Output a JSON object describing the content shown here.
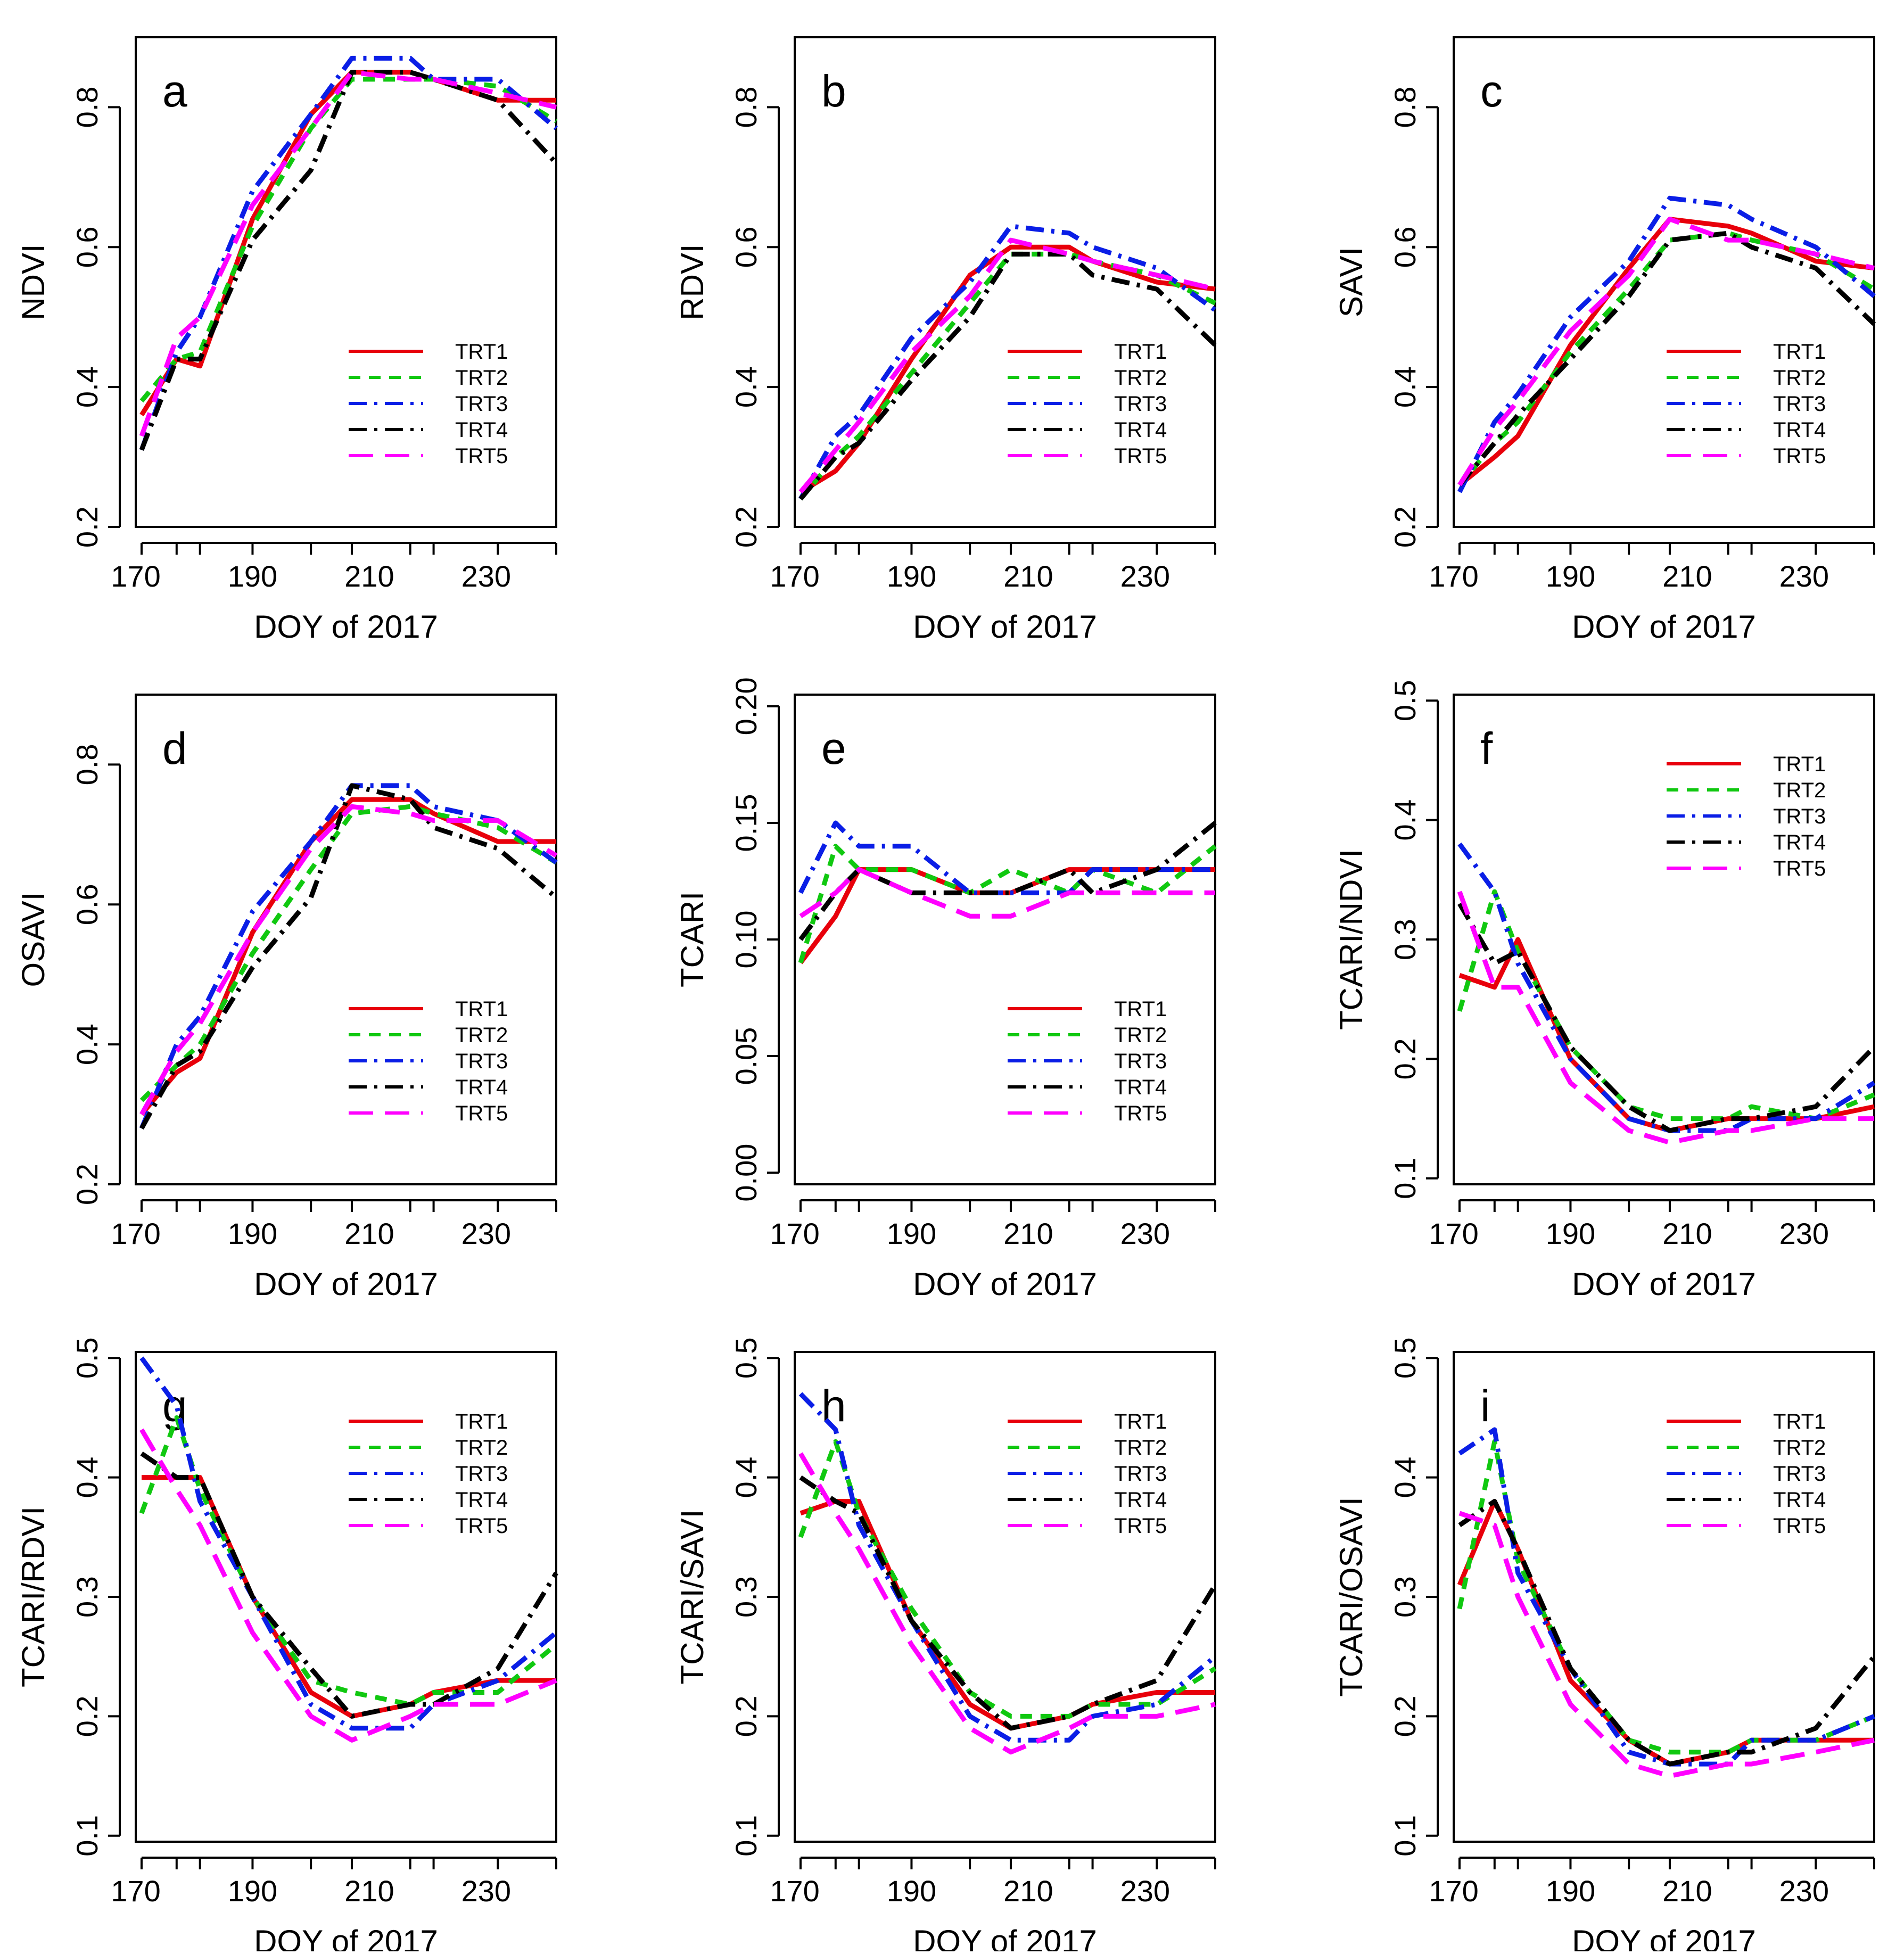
{
  "figure": {
    "xlabel": "DOY of 2017",
    "x_ticks": [
      170,
      190,
      210,
      230
    ],
    "x_days": [
      171,
      177,
      181,
      190,
      200,
      207,
      217,
      221,
      232,
      242
    ],
    "series_styles": [
      {
        "name": "TRT1",
        "color": "#e8000b",
        "dash": "solid"
      },
      {
        "name": "TRT2",
        "color": "#10c810",
        "dash": "dashed"
      },
      {
        "name": "TRT3",
        "color": "#0a1ee6",
        "dash": "dotdash"
      },
      {
        "name": "TRT4",
        "color": "#000000",
        "dash": "dotdash"
      },
      {
        "name": "TRT5",
        "color": "#ff00ff",
        "dash": "longdash"
      }
    ]
  },
  "chart_data": [
    {
      "type": "line",
      "panel": "a",
      "ylabel": "NDVI",
      "xlabel": "DOY of 2017",
      "xlim": [
        170,
        242
      ],
      "ylim": [
        0.2,
        0.9
      ],
      "y_ticks": [
        "0.2",
        "0.4",
        "0.6",
        "0.8"
      ],
      "y_tick_values": [
        0.2,
        0.4,
        0.6,
        0.8
      ],
      "legend_position": "bottom-right",
      "x": [
        171,
        177,
        181,
        190,
        200,
        207,
        217,
        221,
        232,
        242
      ],
      "series": [
        {
          "name": "TRT1",
          "values": [
            0.36,
            0.44,
            0.43,
            0.64,
            0.79,
            0.85,
            0.85,
            0.84,
            0.81,
            0.81
          ]
        },
        {
          "name": "TRT2",
          "values": [
            0.38,
            0.44,
            0.45,
            0.63,
            0.77,
            0.84,
            0.84,
            0.84,
            0.83,
            0.78
          ]
        },
        {
          "name": "TRT3",
          "values": [
            0.31,
            0.45,
            0.5,
            0.68,
            0.79,
            0.87,
            0.87,
            0.84,
            0.84,
            0.77
          ]
        },
        {
          "name": "TRT4",
          "values": [
            0.31,
            0.44,
            0.44,
            0.61,
            0.71,
            0.85,
            0.85,
            0.84,
            0.81,
            0.72
          ]
        },
        {
          "name": "TRT5",
          "values": [
            0.33,
            0.47,
            0.5,
            0.66,
            0.77,
            0.85,
            0.84,
            0.84,
            0.82,
            0.8
          ]
        }
      ]
    },
    {
      "type": "line",
      "panel": "b",
      "ylabel": "RDVI",
      "xlabel": "DOY of 2017",
      "xlim": [
        170,
        242
      ],
      "ylim": [
        0.2,
        0.9
      ],
      "y_ticks": [
        "0.2",
        "0.4",
        "0.6",
        "0.8"
      ],
      "y_tick_values": [
        0.2,
        0.4,
        0.6,
        0.8
      ],
      "legend_position": "bottom-right",
      "x": [
        171,
        177,
        181,
        190,
        200,
        207,
        217,
        221,
        232,
        242
      ],
      "series": [
        {
          "name": "TRT1",
          "values": [
            0.25,
            0.28,
            0.32,
            0.44,
            0.56,
            0.6,
            0.6,
            0.58,
            0.55,
            0.54
          ]
        },
        {
          "name": "TRT2",
          "values": [
            0.24,
            0.3,
            0.33,
            0.42,
            0.52,
            0.59,
            0.59,
            0.58,
            0.56,
            0.52
          ]
        },
        {
          "name": "TRT3",
          "values": [
            0.24,
            0.33,
            0.36,
            0.47,
            0.55,
            0.63,
            0.62,
            0.6,
            0.57,
            0.51
          ]
        },
        {
          "name": "TRT4",
          "values": [
            0.24,
            0.3,
            0.32,
            0.41,
            0.5,
            0.59,
            0.59,
            0.56,
            0.54,
            0.46
          ]
        },
        {
          "name": "TRT5",
          "values": [
            0.25,
            0.31,
            0.35,
            0.45,
            0.53,
            0.61,
            0.59,
            0.58,
            0.56,
            0.54
          ]
        }
      ]
    },
    {
      "type": "line",
      "panel": "c",
      "ylabel": "SAVI",
      "xlabel": "DOY of 2017",
      "xlim": [
        170,
        242
      ],
      "ylim": [
        0.2,
        0.9
      ],
      "y_ticks": [
        "0.2",
        "0.4",
        "0.6",
        "0.8"
      ],
      "y_tick_values": [
        0.2,
        0.4,
        0.6,
        0.8
      ],
      "legend_position": "bottom-right",
      "x": [
        171,
        177,
        181,
        190,
        200,
        207,
        217,
        221,
        232,
        242
      ],
      "series": [
        {
          "name": "TRT1",
          "values": [
            0.26,
            0.3,
            0.33,
            0.46,
            0.57,
            0.64,
            0.63,
            0.62,
            0.58,
            0.57
          ]
        },
        {
          "name": "TRT2",
          "values": [
            0.26,
            0.32,
            0.35,
            0.45,
            0.54,
            0.61,
            0.62,
            0.61,
            0.59,
            0.54
          ]
        },
        {
          "name": "TRT3",
          "values": [
            0.25,
            0.35,
            0.39,
            0.5,
            0.58,
            0.67,
            0.66,
            0.64,
            0.6,
            0.53
          ]
        },
        {
          "name": "TRT4",
          "values": [
            0.26,
            0.32,
            0.36,
            0.44,
            0.53,
            0.61,
            0.62,
            0.6,
            0.57,
            0.49
          ]
        },
        {
          "name": "TRT5",
          "values": [
            0.26,
            0.34,
            0.38,
            0.48,
            0.56,
            0.64,
            0.61,
            0.61,
            0.59,
            0.57
          ]
        }
      ]
    },
    {
      "type": "line",
      "panel": "d",
      "ylabel": "OSAVI",
      "xlabel": "DOY of 2017",
      "xlim": [
        170,
        242
      ],
      "ylim": [
        0.2,
        0.9
      ],
      "y_ticks": [
        "0.2",
        "0.4",
        "0.6",
        "0.8"
      ],
      "y_tick_values": [
        0.2,
        0.4,
        0.6,
        0.8
      ],
      "legend_position": "bottom-right",
      "x": [
        171,
        177,
        181,
        190,
        200,
        207,
        217,
        221,
        232,
        242
      ],
      "series": [
        {
          "name": "TRT1",
          "values": [
            0.3,
            0.36,
            0.38,
            0.56,
            0.69,
            0.75,
            0.75,
            0.73,
            0.69,
            0.69
          ]
        },
        {
          "name": "TRT2",
          "values": [
            0.32,
            0.37,
            0.4,
            0.53,
            0.65,
            0.73,
            0.74,
            0.73,
            0.71,
            0.66
          ]
        },
        {
          "name": "TRT3",
          "values": [
            0.28,
            0.4,
            0.44,
            0.59,
            0.69,
            0.77,
            0.77,
            0.74,
            0.72,
            0.66
          ]
        },
        {
          "name": "TRT4",
          "values": [
            0.28,
            0.37,
            0.39,
            0.51,
            0.61,
            0.77,
            0.75,
            0.71,
            0.68,
            0.61
          ]
        },
        {
          "name": "TRT5",
          "values": [
            0.3,
            0.39,
            0.43,
            0.56,
            0.68,
            0.74,
            0.73,
            0.72,
            0.72,
            0.67
          ]
        }
      ]
    },
    {
      "type": "line",
      "panel": "e",
      "ylabel": "TCARI",
      "xlabel": "DOY of 2017",
      "xlim": [
        170,
        242
      ],
      "ylim": [
        -0.005,
        0.205
      ],
      "y_ticks": [
        "0.00",
        "0.05",
        "0.10",
        "0.15",
        "0.20"
      ],
      "y_tick_values": [
        0.0,
        0.05,
        0.1,
        0.15,
        0.2
      ],
      "legend_position": "bottom-right",
      "x": [
        171,
        177,
        181,
        190,
        200,
        207,
        217,
        221,
        232,
        242
      ],
      "series": [
        {
          "name": "TRT1",
          "values": [
            0.09,
            0.11,
            0.13,
            0.13,
            0.12,
            0.12,
            0.13,
            0.13,
            0.13,
            0.13
          ]
        },
        {
          "name": "TRT2",
          "values": [
            0.09,
            0.14,
            0.13,
            0.13,
            0.12,
            0.13,
            0.12,
            0.13,
            0.12,
            0.14
          ]
        },
        {
          "name": "TRT3",
          "values": [
            0.12,
            0.15,
            0.14,
            0.14,
            0.12,
            0.12,
            0.12,
            0.13,
            0.13,
            0.13
          ]
        },
        {
          "name": "TRT4",
          "values": [
            0.1,
            0.12,
            0.13,
            0.12,
            0.12,
            0.12,
            0.13,
            0.12,
            0.13,
            0.15
          ]
        },
        {
          "name": "TRT5",
          "values": [
            0.11,
            0.12,
            0.13,
            0.12,
            0.11,
            0.11,
            0.12,
            0.12,
            0.12,
            0.12
          ]
        }
      ]
    },
    {
      "type": "line",
      "panel": "f",
      "ylabel": "TCARI/NDVI",
      "xlabel": "DOY of 2017",
      "xlim": [
        170,
        242
      ],
      "ylim": [
        0.095,
        0.505
      ],
      "y_ticks": [
        "0.1",
        "0.2",
        "0.3",
        "0.4",
        "0.5"
      ],
      "y_tick_values": [
        0.1,
        0.2,
        0.3,
        0.4,
        0.5
      ],
      "legend_position": "top-right",
      "x": [
        171,
        177,
        181,
        190,
        200,
        207,
        217,
        221,
        232,
        242
      ],
      "series": [
        {
          "name": "TRT1",
          "values": [
            0.27,
            0.26,
            0.3,
            0.2,
            0.15,
            0.14,
            0.15,
            0.15,
            0.15,
            0.16
          ]
        },
        {
          "name": "TRT2",
          "values": [
            0.24,
            0.34,
            0.29,
            0.21,
            0.16,
            0.15,
            0.15,
            0.16,
            0.15,
            0.17
          ]
        },
        {
          "name": "TRT3",
          "values": [
            0.38,
            0.34,
            0.28,
            0.2,
            0.15,
            0.14,
            0.14,
            0.15,
            0.15,
            0.18
          ]
        },
        {
          "name": "TRT4",
          "values": [
            0.33,
            0.28,
            0.29,
            0.21,
            0.16,
            0.14,
            0.15,
            0.15,
            0.16,
            0.21
          ]
        },
        {
          "name": "TRT5",
          "values": [
            0.34,
            0.26,
            0.26,
            0.18,
            0.14,
            0.13,
            0.14,
            0.14,
            0.15,
            0.15
          ]
        }
      ]
    },
    {
      "type": "line",
      "panel": "g",
      "ylabel": "TCARI/RDVI",
      "xlabel": "DOY of 2017",
      "xlim": [
        170,
        242
      ],
      "ylim": [
        0.095,
        0.505
      ],
      "y_ticks": [
        "0.1",
        "0.2",
        "0.3",
        "0.4",
        "0.5"
      ],
      "y_tick_values": [
        0.1,
        0.2,
        0.3,
        0.4,
        0.5
      ],
      "legend_position": "top-right",
      "x": [
        171,
        177,
        181,
        190,
        200,
        207,
        217,
        221,
        232,
        242
      ],
      "series": [
        {
          "name": "TRT1",
          "values": [
            0.4,
            0.4,
            0.4,
            0.3,
            0.22,
            0.2,
            0.21,
            0.22,
            0.23,
            0.23
          ]
        },
        {
          "name": "TRT2",
          "values": [
            0.37,
            0.45,
            0.39,
            0.3,
            0.23,
            0.22,
            0.21,
            0.22,
            0.22,
            0.26
          ]
        },
        {
          "name": "TRT3",
          "values": [
            0.5,
            0.46,
            0.38,
            0.3,
            0.21,
            0.19,
            0.19,
            0.21,
            0.23,
            0.27
          ]
        },
        {
          "name": "TRT4",
          "values": [
            0.42,
            0.4,
            0.4,
            0.3,
            0.24,
            0.2,
            0.21,
            0.21,
            0.24,
            0.32
          ]
        },
        {
          "name": "TRT5",
          "values": [
            0.44,
            0.39,
            0.36,
            0.27,
            0.2,
            0.18,
            0.2,
            0.21,
            0.21,
            0.23
          ]
        }
      ]
    },
    {
      "type": "line",
      "panel": "h",
      "ylabel": "TCARI/SAVI",
      "xlabel": "DOY of 2017",
      "xlim": [
        170,
        242
      ],
      "ylim": [
        0.095,
        0.505
      ],
      "y_ticks": [
        "0.1",
        "0.2",
        "0.3",
        "0.4",
        "0.5"
      ],
      "y_tick_values": [
        0.1,
        0.2,
        0.3,
        0.4,
        0.5
      ],
      "legend_position": "top-right",
      "x": [
        171,
        177,
        181,
        190,
        200,
        207,
        217,
        221,
        232,
        242
      ],
      "series": [
        {
          "name": "TRT1",
          "values": [
            0.37,
            0.38,
            0.38,
            0.28,
            0.21,
            0.19,
            0.2,
            0.21,
            0.22,
            0.22
          ]
        },
        {
          "name": "TRT2",
          "values": [
            0.35,
            0.43,
            0.37,
            0.29,
            0.22,
            0.2,
            0.2,
            0.21,
            0.21,
            0.24
          ]
        },
        {
          "name": "TRT3",
          "values": [
            0.47,
            0.44,
            0.36,
            0.28,
            0.2,
            0.18,
            0.18,
            0.2,
            0.21,
            0.25
          ]
        },
        {
          "name": "TRT4",
          "values": [
            0.4,
            0.38,
            0.37,
            0.28,
            0.22,
            0.19,
            0.2,
            0.21,
            0.23,
            0.31
          ]
        },
        {
          "name": "TRT5",
          "values": [
            0.42,
            0.37,
            0.34,
            0.26,
            0.19,
            0.17,
            0.19,
            0.2,
            0.2,
            0.21
          ]
        }
      ]
    },
    {
      "type": "line",
      "panel": "i",
      "ylabel": "TCARI/OSAVI",
      "xlabel": "DOY of 2017",
      "xlim": [
        170,
        242
      ],
      "ylim": [
        0.095,
        0.505
      ],
      "y_ticks": [
        "0.1",
        "0.2",
        "0.3",
        "0.4",
        "0.5"
      ],
      "y_tick_values": [
        0.1,
        0.2,
        0.3,
        0.4,
        0.5
      ],
      "legend_position": "top-right",
      "x": [
        171,
        177,
        181,
        190,
        200,
        207,
        217,
        221,
        232,
        242
      ],
      "series": [
        {
          "name": "TRT1",
          "values": [
            0.31,
            0.38,
            0.34,
            0.23,
            0.18,
            0.16,
            0.17,
            0.18,
            0.18,
            0.18
          ]
        },
        {
          "name": "TRT2",
          "values": [
            0.29,
            0.43,
            0.33,
            0.24,
            0.18,
            0.17,
            0.17,
            0.18,
            0.18,
            0.2
          ]
        },
        {
          "name": "TRT3",
          "values": [
            0.42,
            0.44,
            0.32,
            0.24,
            0.17,
            0.16,
            0.16,
            0.18,
            0.18,
            0.2
          ]
        },
        {
          "name": "TRT4",
          "values": [
            0.36,
            0.38,
            0.34,
            0.24,
            0.18,
            0.16,
            0.17,
            0.17,
            0.19,
            0.25
          ]
        },
        {
          "name": "TRT5",
          "values": [
            0.37,
            0.36,
            0.3,
            0.21,
            0.16,
            0.15,
            0.16,
            0.16,
            0.17,
            0.18
          ]
        }
      ]
    }
  ]
}
